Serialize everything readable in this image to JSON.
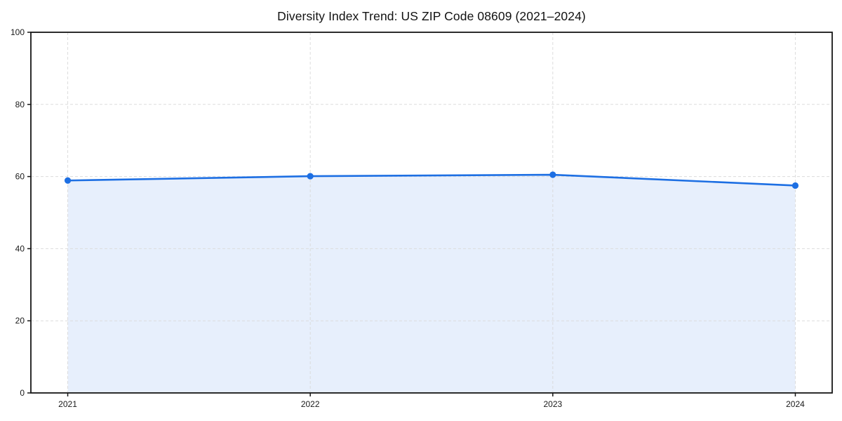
{
  "figure": {
    "title": "Diversity Index Trend: US ZIP Code 08609 (2021–2024)"
  },
  "chart_data": {
    "type": "area",
    "title": "Diversity Index Trend: US ZIP Code 08609 (2021–2024)",
    "categories": [
      "2021",
      "2022",
      "2023",
      "2024"
    ],
    "series": [
      {
        "name": "Diversity Index",
        "values": [
          58.9,
          60.1,
          60.5,
          57.5
        ]
      }
    ],
    "xlabel": "",
    "ylabel": "",
    "ylim": [
      0,
      100
    ],
    "yticks": [
      0,
      20,
      40,
      60,
      80,
      100
    ],
    "grid": {
      "visible": true,
      "style": "dashed",
      "axes": "both"
    },
    "legend": "none",
    "marker": "circle",
    "colors": {
      "line": "#1d6fe3",
      "marker": "#1d6fe3",
      "fill": "#e7effc",
      "grid": "#d9d9d9",
      "spine": "#161616",
      "tick_text": "#1a1a1a",
      "title_text": "#111111",
      "background": "#ffffff"
    }
  }
}
